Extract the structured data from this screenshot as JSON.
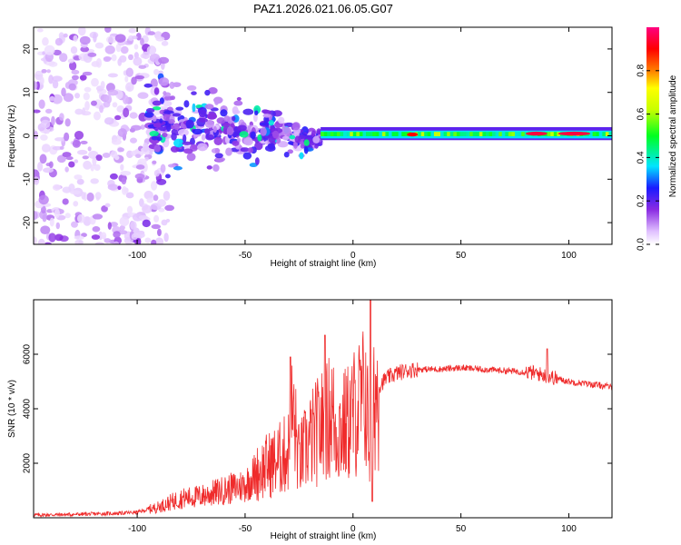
{
  "title": "PAZ1.2026.021.06.05.G07",
  "colors": {
    "snr_line": "#ef2b2b",
    "frame": "#000000",
    "background": "#ffffff"
  },
  "chart_data": [
    {
      "type": "heatmap",
      "xlabel": "Height of straight line (km)",
      "ylabel": "Frequency (Hz)",
      "xlim": [
        -148,
        120
      ],
      "ylim": [
        -25,
        25
      ],
      "x_ticks": [
        -100,
        -50,
        0,
        50,
        100
      ],
      "y_ticks": [
        -20,
        -10,
        0,
        10,
        20
      ],
      "grid": false,
      "colorbar": {
        "label": "Normalized spectral amplitude",
        "range": [
          0,
          1
        ],
        "ticks": [
          "0.0",
          "0.2",
          "0.4",
          "0.6",
          "0.8"
        ],
        "colormap": "rainbow: white-violet-blue-cyan-green-yellow-orange-red-magenta"
      },
      "features": [
        {
          "x_range": [
            -148,
            -90
          ],
          "freq_range": [
            -25,
            25
          ],
          "amplitude": 0.05,
          "pattern": "scattered noise"
        },
        {
          "x_range": [
            -95,
            -15
          ],
          "freq_range": [
            -7,
            14
          ],
          "amplitude": 0.15,
          "pattern": "converging scatter"
        },
        {
          "x_range": [
            -15,
            120
          ],
          "freq_range": [
            -1,
            2
          ],
          "amplitude": 0.5,
          "pattern": "narrow band near 0 Hz"
        },
        {
          "x_range": [
            80,
            90
          ],
          "freq_center": 0.5,
          "amplitude": 0.95
        },
        {
          "x_range": [
            95,
            110
          ],
          "freq_center": 0.5,
          "amplitude": 0.95
        },
        {
          "x_range": [
            25,
            30
          ],
          "freq_center": 0.3,
          "amplitude": 0.9
        }
      ]
    },
    {
      "type": "line",
      "xlabel": "Height of straight line (km)",
      "ylabel": "SNR (10 * v/v)",
      "xlim": [
        -148,
        120
      ],
      "ylim": [
        0,
        8000
      ],
      "x_ticks": [
        -100,
        -50,
        0,
        50,
        100
      ],
      "y_ticks": [
        2000,
        4000,
        6000
      ],
      "grid": false,
      "series": [
        {
          "x": [
            -148,
            -130,
            -110,
            -100,
            -95,
            -90,
            -80,
            -70,
            -60,
            -50,
            -45,
            -40,
            -35,
            -30,
            -28,
            -25,
            -20,
            -15,
            -12,
            -10,
            -8,
            -5,
            -2,
            0,
            2,
            4,
            6,
            8,
            10,
            12,
            15,
            20,
            25,
            30,
            40,
            50,
            60,
            70,
            80,
            85,
            90,
            95,
            100,
            110,
            120
          ],
          "y": [
            100,
            120,
            160,
            200,
            300,
            400,
            700,
            800,
            1000,
            1200,
            1600,
            1900,
            2100,
            2400,
            3900,
            2100,
            2800,
            3300,
            3500,
            4000,
            3200,
            3300,
            3500,
            3800,
            4000,
            4200,
            4600,
            2000,
            4500,
            4800,
            5100,
            5300,
            5400,
            5450,
            5450,
            5500,
            5450,
            5400,
            5350,
            5300,
            5200,
            5100,
            5000,
            4900,
            4800
          ]
        }
      ],
      "annotations": [
        {
          "x": -29,
          "y": 5900,
          "note": "spike"
        },
        {
          "x": -13,
          "y": 6700,
          "note": "spike"
        },
        {
          "x": 8,
          "y": 8000,
          "note": "peak"
        },
        {
          "x": 9,
          "y": 600,
          "note": "dip"
        },
        {
          "x": 90,
          "y": 6200,
          "note": "spike"
        }
      ]
    }
  ]
}
